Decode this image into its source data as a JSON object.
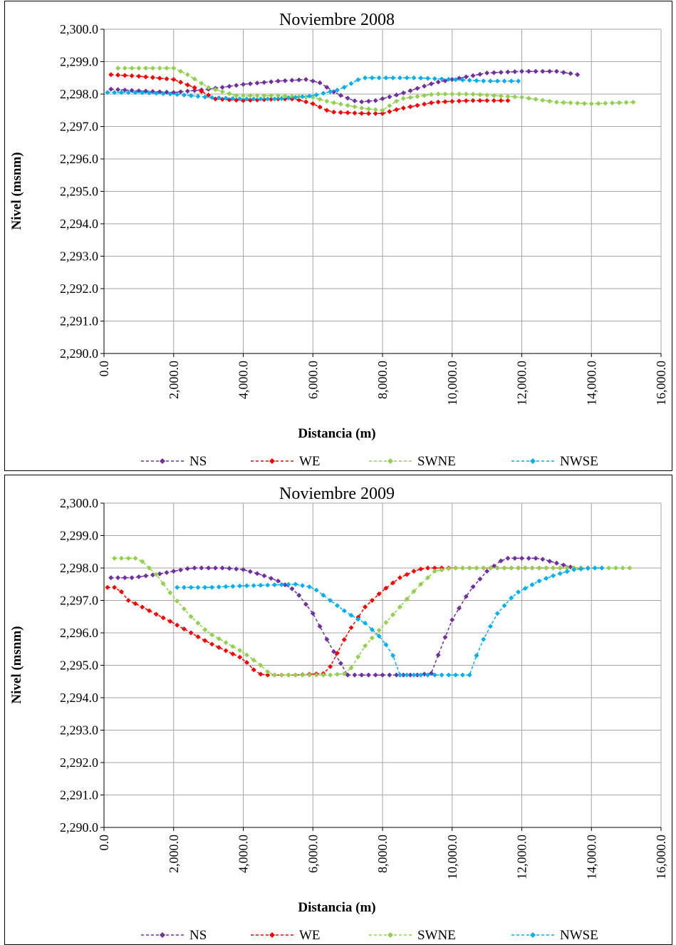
{
  "chart_data": [
    {
      "type": "line",
      "title": "Noviembre 2008",
      "xlabel": "Distancia (m)",
      "ylabel": "Nivel (msnm)",
      "xlim": [
        0,
        16000
      ],
      "ylim": [
        2290,
        2300
      ],
      "x_ticks": [
        0,
        2000,
        4000,
        6000,
        8000,
        10000,
        12000,
        14000,
        16000
      ],
      "x_tick_labels": [
        "0.0",
        "2,000.0",
        "4,000.0",
        "6,000.0",
        "8,000.0",
        "10,000.0",
        "12,000.0",
        "14,000.0",
        "16,000.0"
      ],
      "y_ticks": [
        2290,
        2291,
        2292,
        2293,
        2294,
        2295,
        2296,
        2297,
        2298,
        2299,
        2300
      ],
      "y_tick_labels": [
        "2,290.0",
        "2,291.0",
        "2,292.0",
        "2,293.0",
        "2,294.0",
        "2,295.0",
        "2,296.0",
        "2,297.0",
        "2,298.0",
        "2,299.0",
        "2,300.0"
      ],
      "grid": true,
      "legend": "bottom",
      "series": [
        {
          "name": "NS",
          "color": "#7030a0",
          "x_start": 200,
          "x_step": 200,
          "keys": [
            [
              200,
              2298.15
            ],
            [
              1000,
              2298.1
            ],
            [
              2000,
              2298.05
            ],
            [
              3000,
              2298.15
            ],
            [
              4000,
              2298.3
            ],
            [
              5000,
              2298.4
            ],
            [
              5800,
              2298.45
            ],
            [
              6200,
              2298.35
            ],
            [
              6700,
              2298.0
            ],
            [
              7300,
              2297.75
            ],
            [
              7800,
              2297.8
            ],
            [
              8500,
              2298.0
            ],
            [
              9500,
              2298.35
            ],
            [
              10500,
              2298.55
            ],
            [
              11000,
              2298.65
            ],
            [
              12000,
              2298.7
            ],
            [
              13000,
              2298.7
            ],
            [
              13600,
              2298.6
            ]
          ]
        },
        {
          "name": "WE",
          "color": "#ff0000",
          "x_start": 200,
          "x_step": 200,
          "keys": [
            [
              200,
              2298.6
            ],
            [
              1000,
              2298.55
            ],
            [
              2000,
              2298.45
            ],
            [
              2600,
              2298.2
            ],
            [
              3200,
              2297.85
            ],
            [
              4000,
              2297.8
            ],
            [
              5000,
              2297.85
            ],
            [
              5500,
              2297.85
            ],
            [
              6000,
              2297.7
            ],
            [
              6500,
              2297.45
            ],
            [
              7500,
              2297.4
            ],
            [
              8000,
              2297.4
            ],
            [
              8500,
              2297.55
            ],
            [
              9500,
              2297.75
            ],
            [
              10500,
              2297.8
            ],
            [
              11600,
              2297.8
            ]
          ]
        },
        {
          "name": "SWNE",
          "color": "#92d050",
          "x_start": 400,
          "x_step": 200,
          "keys": [
            [
              400,
              2298.8
            ],
            [
              1000,
              2298.8
            ],
            [
              2000,
              2298.8
            ],
            [
              2400,
              2298.6
            ],
            [
              3000,
              2298.2
            ],
            [
              3800,
              2297.95
            ],
            [
              5000,
              2297.95
            ],
            [
              6000,
              2297.9
            ],
            [
              6500,
              2297.75
            ],
            [
              7500,
              2297.55
            ],
            [
              8000,
              2297.5
            ],
            [
              8500,
              2297.85
            ],
            [
              9500,
              2298.0
            ],
            [
              10500,
              2298.0
            ],
            [
              12000,
              2297.9
            ],
            [
              13000,
              2297.75
            ],
            [
              14000,
              2297.7
            ],
            [
              15200,
              2297.75
            ]
          ]
        },
        {
          "name": "NWSE",
          "color": "#00b0f0",
          "x_start": 100,
          "x_step": 200,
          "keys": [
            [
              100,
              2298.05
            ],
            [
              1000,
              2298.05
            ],
            [
              2000,
              2298.0
            ],
            [
              3000,
              2297.9
            ],
            [
              4000,
              2297.85
            ],
            [
              5000,
              2297.85
            ],
            [
              6000,
              2297.95
            ],
            [
              6800,
              2298.15
            ],
            [
              7400,
              2298.5
            ],
            [
              8000,
              2298.5
            ],
            [
              9000,
              2298.5
            ],
            [
              10000,
              2298.45
            ],
            [
              11000,
              2298.4
            ],
            [
              12000,
              2298.4
            ]
          ]
        }
      ]
    },
    {
      "type": "line",
      "title": "Noviembre 2009",
      "xlabel": "Distancia (m)",
      "ylabel": "Nivel (msnm)",
      "xlim": [
        0,
        16000
      ],
      "ylim": [
        2290,
        2300
      ],
      "x_ticks": [
        0,
        2000,
        4000,
        6000,
        8000,
        10000,
        12000,
        14000,
        16000
      ],
      "x_tick_labels": [
        "0.0",
        "2,000.0",
        "4,000.0",
        "6,000.0",
        "8,000.0",
        "10,000.0",
        "12,000.0",
        "14,000.0",
        "16,000.0"
      ],
      "y_ticks": [
        2290,
        2291,
        2292,
        2293,
        2294,
        2295,
        2296,
        2297,
        2298,
        2299,
        2300
      ],
      "y_tick_labels": [
        "2,290.0",
        "2,291.0",
        "2,292.0",
        "2,293.0",
        "2,294.0",
        "2,295.0",
        "2,296.0",
        "2,297.0",
        "2,298.0",
        "2,299.0",
        "2,300.0"
      ],
      "grid": true,
      "legend": "bottom",
      "series": [
        {
          "name": "NS",
          "color": "#7030a0",
          "x_start": 200,
          "x_step": 200,
          "keys": [
            [
              200,
              2297.7
            ],
            [
              800,
              2297.7
            ],
            [
              1500,
              2297.8
            ],
            [
              2000,
              2297.9
            ],
            [
              2500,
              2298.0
            ],
            [
              3500,
              2298.0
            ],
            [
              4000,
              2297.95
            ],
            [
              4500,
              2297.8
            ],
            [
              5000,
              2297.6
            ],
            [
              5500,
              2297.3
            ],
            [
              6000,
              2296.6
            ],
            [
              6500,
              2295.6
            ],
            [
              7000,
              2294.7
            ],
            [
              8000,
              2294.7
            ],
            [
              9000,
              2294.7
            ],
            [
              9400,
              2294.75
            ],
            [
              9700,
              2295.6
            ],
            [
              10000,
              2296.4
            ],
            [
              10500,
              2297.3
            ],
            [
              11000,
              2297.9
            ],
            [
              11500,
              2298.3
            ],
            [
              12000,
              2298.3
            ],
            [
              12500,
              2298.3
            ],
            [
              13000,
              2298.15
            ],
            [
              13500,
              2298.0
            ]
          ]
        },
        {
          "name": "WE",
          "color": "#ff0000",
          "x_start": 100,
          "x_step": 200,
          "keys": [
            [
              100,
              2297.4
            ],
            [
              400,
              2297.4
            ],
            [
              700,
              2297.0
            ],
            [
              1000,
              2296.85
            ],
            [
              2000,
              2296.3
            ],
            [
              3000,
              2295.7
            ],
            [
              4000,
              2295.2
            ],
            [
              4400,
              2294.75
            ],
            [
              4600,
              2294.7
            ],
            [
              5500,
              2294.7
            ],
            [
              6400,
              2294.75
            ],
            [
              7000,
              2296.0
            ],
            [
              7500,
              2296.8
            ],
            [
              8000,
              2297.3
            ],
            [
              8500,
              2297.7
            ],
            [
              9000,
              2297.95
            ],
            [
              9300,
              2298.0
            ],
            [
              10000,
              2298.0
            ],
            [
              11000,
              2298.0
            ],
            [
              12000,
              2298.0
            ],
            [
              13000,
              2298.0
            ],
            [
              14000,
              2298.0
            ]
          ]
        },
        {
          "name": "SWNE",
          "color": "#92d050",
          "x_start": 300,
          "x_step": 200,
          "keys": [
            [
              300,
              2298.3
            ],
            [
              1000,
              2298.3
            ],
            [
              1500,
              2297.8
            ],
            [
              2000,
              2297.1
            ],
            [
              2500,
              2296.5
            ],
            [
              3000,
              2296.0
            ],
            [
              3500,
              2295.7
            ],
            [
              4000,
              2295.4
            ],
            [
              4500,
              2295.0
            ],
            [
              4800,
              2294.7
            ],
            [
              5500,
              2294.7
            ],
            [
              6500,
              2294.7
            ],
            [
              7000,
              2294.75
            ],
            [
              7500,
              2295.6
            ],
            [
              8000,
              2296.2
            ],
            [
              8500,
              2296.8
            ],
            [
              9000,
              2297.4
            ],
            [
              9500,
              2297.9
            ],
            [
              10000,
              2298.0
            ],
            [
              11000,
              2298.0
            ],
            [
              12000,
              2298.0
            ],
            [
              13000,
              2298.0
            ],
            [
              14000,
              2298.0
            ],
            [
              15200,
              2298.0
            ]
          ]
        },
        {
          "name": "NWSE",
          "color": "#00b0f0",
          "x_start": 2100,
          "x_step": 200,
          "keys": [
            [
              2100,
              2297.4
            ],
            [
              3000,
              2297.4
            ],
            [
              4000,
              2297.45
            ],
            [
              5500,
              2297.5
            ],
            [
              6000,
              2297.4
            ],
            [
              6500,
              2297.0
            ],
            [
              7000,
              2296.6
            ],
            [
              7500,
              2296.3
            ],
            [
              8000,
              2295.8
            ],
            [
              8300,
              2295.3
            ],
            [
              8500,
              2294.7
            ],
            [
              9500,
              2294.7
            ],
            [
              10500,
              2294.7
            ],
            [
              10800,
              2295.6
            ],
            [
              11300,
              2296.6
            ],
            [
              11800,
              2297.2
            ],
            [
              12500,
              2297.6
            ],
            [
              13000,
              2297.8
            ],
            [
              13500,
              2297.95
            ],
            [
              14000,
              2298.0
            ],
            [
              14300,
              2298.0
            ]
          ]
        }
      ]
    }
  ]
}
